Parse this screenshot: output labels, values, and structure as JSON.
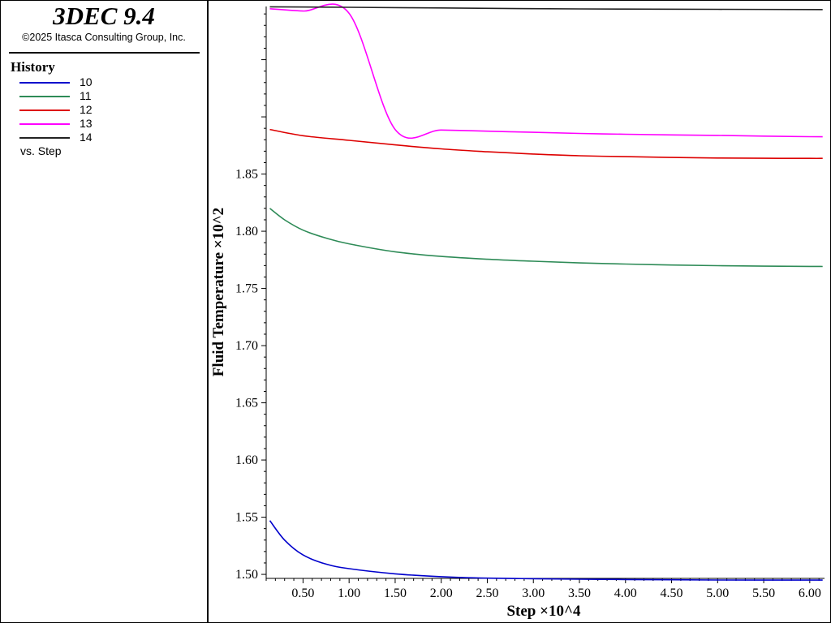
{
  "app": {
    "title": "3DEC 9.4",
    "copyright": "©2025 Itasca Consulting Group, Inc."
  },
  "legend": {
    "heading": "History",
    "items": [
      {
        "label": "10",
        "color": "#0000cc"
      },
      {
        "label": "11",
        "color": "#2e8b57"
      },
      {
        "label": "12",
        "color": "#dd0000"
      },
      {
        "label": "13",
        "color": "#ff00ff"
      },
      {
        "label": "14",
        "color": "#222222"
      }
    ],
    "vs_label": "vs. Step"
  },
  "chart_data": {
    "type": "line",
    "title": "",
    "xlabel": "Step ×10^4",
    "ylabel": "Fluid Temperature ×10^2",
    "xlim": [
      0.1,
      6.16
    ],
    "ylim": [
      1.4965,
      1.9965
    ],
    "x_ticks": [
      0.5,
      1.0,
      1.5,
      2.0,
      2.5,
      3.0,
      3.5,
      4.0,
      4.5,
      5.0,
      5.5,
      6.0
    ],
    "x_tick_labels": [
      "0.50",
      "1.00",
      "1.50",
      "2.00",
      "2.50",
      "3.00",
      "3.50",
      "4.00",
      "4.50",
      "5.00",
      "5.50",
      "6.00"
    ],
    "y_ticks": [
      1.5,
      1.55,
      1.6,
      1.65,
      1.7,
      1.75,
      1.8,
      1.85
    ],
    "y_tick_labels": [
      "1.50",
      "1.55",
      "1.60",
      "1.65",
      "1.70",
      "1.75",
      "1.80",
      "1.85"
    ],
    "grid": false,
    "legend_placement": "left-panel",
    "series": [
      {
        "name": "10",
        "color": "#0000cc",
        "x": [
          0.14,
          0.3,
          0.5,
          0.75,
          1.0,
          1.5,
          2.0,
          2.5,
          3.0,
          3.5,
          4.0,
          4.5,
          5.0,
          5.5,
          6.0,
          6.14
        ],
        "y": [
          1.547,
          1.53,
          1.517,
          1.509,
          1.505,
          1.5005,
          1.498,
          1.4967,
          1.4962,
          1.4958,
          1.4955,
          1.4953,
          1.4951,
          1.495,
          1.495,
          1.495
        ]
      },
      {
        "name": "11",
        "color": "#2e8b57",
        "x": [
          0.14,
          0.3,
          0.5,
          0.75,
          1.0,
          1.5,
          2.0,
          2.5,
          3.0,
          3.5,
          4.0,
          4.5,
          5.0,
          5.5,
          6.0,
          6.14
        ],
        "y": [
          1.82,
          1.81,
          1.801,
          1.794,
          1.789,
          1.782,
          1.778,
          1.7755,
          1.7738,
          1.7723,
          1.7713,
          1.7705,
          1.7699,
          1.7695,
          1.7693,
          1.7692
        ]
      },
      {
        "name": "12",
        "color": "#dd0000",
        "x": [
          0.14,
          0.5,
          1.0,
          1.5,
          2.0,
          2.5,
          3.0,
          3.5,
          4.0,
          4.5,
          5.0,
          5.5,
          6.0,
          6.14
        ],
        "y": [
          1.889,
          1.8835,
          1.8795,
          1.8755,
          1.872,
          1.8695,
          1.8675,
          1.866,
          1.8652,
          1.8645,
          1.864,
          1.8638,
          1.8637,
          1.8637
        ]
      },
      {
        "name": "13",
        "color": "#ff00ff",
        "x": [
          0.14,
          0.5,
          1.0,
          1.5,
          2.0,
          2.5,
          3.0,
          3.5,
          4.0,
          4.5,
          5.0,
          5.5,
          6.0,
          6.14
        ],
        "y": [
          1.9945,
          1.9925,
          1.9905,
          1.889,
          1.8885,
          1.8875,
          1.8865,
          1.8855,
          1.8848,
          1.8842,
          1.8838,
          1.8832,
          1.8827,
          1.8826
        ]
      },
      {
        "name": "14",
        "color": "#222222",
        "x": [
          0.14,
          1.0,
          2.0,
          3.0,
          4.0,
          5.0,
          6.14
        ],
        "y": [
          1.9962,
          1.9958,
          1.9952,
          1.9946,
          1.9942,
          1.994,
          1.9938
        ]
      }
    ]
  }
}
